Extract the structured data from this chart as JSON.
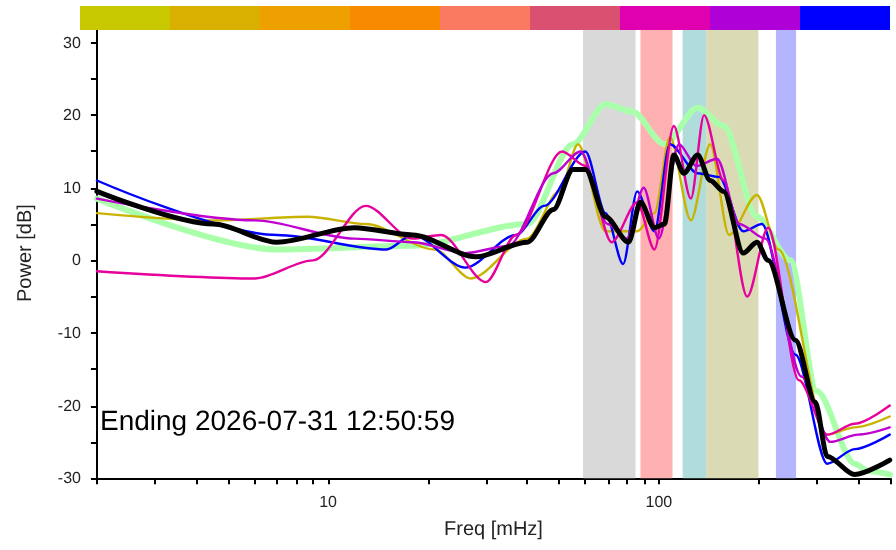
{
  "chart_data": {
    "type": "line",
    "xlabel": "Freq [mHz]",
    "ylabel": "Power [dB]",
    "log": "x",
    "xlim": [
      2,
      500
    ],
    "ylim": [
      -30,
      32
    ],
    "xticks": [
      {
        "value": 2,
        "label": null
      },
      {
        "value": 3,
        "label": null
      },
      {
        "value": 4,
        "label": null
      },
      {
        "value": 5,
        "label": null
      },
      {
        "value": 6,
        "label": null
      },
      {
        "value": 7,
        "label": null
      },
      {
        "value": 8,
        "label": null
      },
      {
        "value": 9,
        "label": null
      },
      10,
      {
        "value": 20,
        "label": null
      },
      {
        "value": 30,
        "label": null
      },
      {
        "value": 40,
        "label": null
      },
      {
        "value": 50,
        "label": null
      },
      {
        "value": 60,
        "label": null
      },
      {
        "value": 70,
        "label": null
      },
      {
        "value": 80,
        "label": null
      },
      {
        "value": 90,
        "label": null
      },
      100,
      {
        "value": 200,
        "label": null
      },
      {
        "value": 300,
        "label": null
      },
      {
        "value": 400,
        "label": null
      },
      {
        "value": 500,
        "label": null
      }
    ],
    "yticks": [
      -30,
      {
        "value": -25,
        "label": null
      },
      -20,
      {
        "value": -15,
        "label": null
      },
      -10,
      {
        "value": -5,
        "label": null
      },
      0,
      {
        "value": 5,
        "label": null
      },
      10,
      {
        "value": 15,
        "label": null
      },
      20,
      {
        "value": 25,
        "label": null
      },
      30
    ],
    "grid": false,
    "marker": "none",
    "line_style": "solid",
    "bands": [
      {
        "axis": "x",
        "from": 59,
        "to": 85,
        "color": "#d9d9d9"
      },
      {
        "axis": "x",
        "from": 88,
        "to": 110,
        "color": "#ffb0b0"
      },
      {
        "axis": "x",
        "from": 118,
        "to": 139,
        "color": "#b0dcdc"
      },
      {
        "axis": "x",
        "from": 139,
        "to": 200,
        "color": "#dadab4"
      },
      {
        "axis": "x",
        "from": 226,
        "to": 260,
        "color": "#b4b4ff"
      }
    ],
    "annotations": [
      "Ending 2026-07-31 12:50:59"
    ],
    "series": [
      {
        "color": "#aaffaa",
        "x": [
          2,
          7,
          18,
          40,
          55,
          69,
          83,
          104,
          131,
          157,
          198,
          250,
          300,
          391,
          430,
          500
        ],
        "values": [
          8.5,
          1.5,
          2,
          5,
          16,
          21.5,
          20.5,
          16,
          21,
          18.5,
          6,
          0,
          -18,
          -28,
          -29,
          -29.5
        ]
      },
      {
        "color": "#c8b400",
        "x": [
          2,
          4.5,
          8.7,
          13,
          21,
          27,
          40,
          50,
          57,
          69,
          86,
          97,
          108,
          125,
          143,
          163,
          198,
          230,
          323,
          391,
          499
        ],
        "values": [
          6.5,
          5.5,
          6,
          5,
          1.5,
          -2.5,
          3,
          9.5,
          16,
          4,
          4,
          6.5,
          17,
          5.5,
          16,
          3.5,
          9,
          1.5,
          -24,
          -23,
          -21.5
        ]
      },
      {
        "color": "#0000ff",
        "x": [
          2,
          7,
          15,
          18,
          26,
          37,
          45,
          60,
          69,
          78,
          86,
          97,
          108,
          131,
          152,
          180,
          205,
          259,
          323,
          391,
          499
        ],
        "values": [
          11,
          3.5,
          1.5,
          3.5,
          -1,
          3.5,
          7.5,
          15,
          6.5,
          -0.5,
          9.5,
          4,
          16,
          12,
          11.5,
          4,
          5,
          -13,
          -28,
          -26,
          -24
        ]
      },
      {
        "color": "#e6009c",
        "x": [
          2,
          6,
          9,
          13,
          18,
          22,
          30,
          37,
          51,
          60,
          72,
          86,
          97,
          111,
          125,
          137,
          157,
          185,
          214,
          265,
          323,
          391,
          499
        ],
        "values": [
          -1.5,
          -2.5,
          0,
          7.5,
          3,
          3.5,
          -3,
          3.5,
          15,
          13,
          2.5,
          8,
          1.5,
          18.5,
          8.5,
          20,
          11,
          -5,
          4.5,
          -16.5,
          -24,
          -22.5,
          -20
        ]
      },
      {
        "color": "#c000d0",
        "x": [
          2,
          6,
          12,
          18,
          26,
          35,
          48,
          58,
          70,
          80,
          90,
          100,
          115,
          130,
          150,
          175,
          210,
          270,
          330,
          400,
          499
        ],
        "values": [
          8.5,
          5.5,
          3,
          2.5,
          1,
          2,
          12,
          15,
          5,
          3,
          10,
          3,
          16,
          13,
          14,
          5,
          3,
          -16,
          -25,
          -24,
          -23
        ]
      },
      {
        "color": "#000000",
        "x": [
          2,
          4.5,
          7,
          12,
          18,
          28,
          40,
          48,
          55,
          60,
          69,
          81,
          88,
          97,
          104,
          111,
          119,
          131,
          143,
          157,
          180,
          198,
          214,
          259,
          297,
          323,
          391,
          499
        ],
        "values": [
          9.5,
          5,
          2.5,
          4.5,
          3.5,
          0.5,
          2.5,
          7,
          12.5,
          12.5,
          6,
          2.5,
          8,
          4.5,
          5,
          14.5,
          12,
          14.5,
          11,
          9.5,
          1,
          2.5,
          0,
          -11,
          -19.5,
          -27,
          -29.5,
          -27.5
        ]
      }
    ]
  }
}
